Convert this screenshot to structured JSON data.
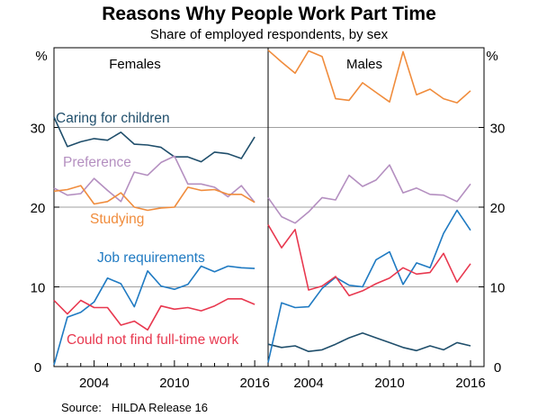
{
  "chart_data": {
    "type": "line",
    "title": "Reasons Why People Work Part Time",
    "subtitle": "Share of employed respondents, by sex",
    "ylabel_left": "%",
    "ylabel_right": "%",
    "ylim": [
      0,
      40
    ],
    "yticks": [
      0,
      10,
      20,
      30
    ],
    "xlim": [
      2001,
      2017
    ],
    "xticks": [
      2004,
      2010,
      2016
    ],
    "grid": true,
    "source_label": "Source:",
    "source_text": "HILDA Release 16",
    "x": [
      2001,
      2002,
      2003,
      2004,
      2005,
      2006,
      2007,
      2008,
      2009,
      2010,
      2011,
      2012,
      2013,
      2014,
      2015,
      2016
    ],
    "colors": {
      "caring": "#1f4e6b",
      "preference": "#b48fc0",
      "studying": "#f08c3c",
      "job": "#1f7ac2",
      "couldnot": "#e8384f"
    },
    "panels": [
      {
        "name": "Females",
        "series": [
          {
            "key": "caring",
            "name": "Caring for children",
            "values": [
              31.3,
              27.6,
              28.2,
              28.6,
              28.4,
              29.4,
              27.9,
              27.8,
              27.5,
              26.3,
              26.3,
              25.7,
              26.9,
              26.7,
              26.1,
              28.8
            ]
          },
          {
            "key": "preference",
            "name": "Preference",
            "values": [
              22.4,
              21.5,
              21.7,
              23.6,
              22.1,
              20.7,
              24.4,
              24.0,
              25.6,
              26.4,
              22.9,
              22.9,
              22.5,
              21.3,
              22.7,
              20.6
            ]
          },
          {
            "key": "studying",
            "name": "Studying",
            "values": [
              22.0,
              22.2,
              22.7,
              20.4,
              20.7,
              21.8,
              20.0,
              19.6,
              19.9,
              20.0,
              22.5,
              22.1,
              22.2,
              21.6,
              21.6,
              20.6
            ]
          },
          {
            "key": "job",
            "name": "Job requirements",
            "values": [
              0.2,
              6.2,
              6.8,
              8.1,
              11.1,
              10.4,
              7.5,
              12.0,
              10.1,
              9.7,
              10.3,
              12.6,
              11.9,
              12.6,
              12.4,
              12.3
            ]
          },
          {
            "key": "couldnot",
            "name": "Could not find full-time work",
            "values": [
              8.3,
              6.6,
              8.3,
              7.4,
              7.4,
              5.2,
              5.7,
              4.6,
              7.6,
              7.2,
              7.4,
              7.0,
              7.6,
              8.5,
              8.5,
              7.8
            ]
          }
        ]
      },
      {
        "name": "Males",
        "series": [
          {
            "key": "caring",
            "name": "",
            "values": [
              2.8,
              2.4,
              2.6,
              1.9,
              2.1,
              2.8,
              3.6,
              4.2,
              3.6,
              3.0,
              2.4,
              2.0,
              2.6,
              2.1,
              3.0,
              2.6
            ]
          },
          {
            "key": "preference",
            "name": "",
            "values": [
              21.2,
              18.8,
              18.0,
              19.4,
              21.2,
              20.9,
              24.0,
              22.6,
              23.4,
              25.3,
              21.8,
              22.4,
              21.6,
              21.5,
              20.7,
              22.9
            ]
          },
          {
            "key": "studying",
            "name": "",
            "values": [
              39.7,
              38.2,
              36.8,
              39.6,
              38.9,
              33.6,
              33.4,
              35.6,
              34.4,
              33.2,
              39.5,
              34.1,
              34.8,
              33.6,
              33.1,
              34.6
            ]
          },
          {
            "key": "job",
            "name": "",
            "values": [
              0.5,
              8.0,
              7.4,
              7.5,
              9.8,
              11.2,
              10.2,
              10.0,
              13.4,
              14.4,
              10.3,
              13.0,
              12.4,
              16.7,
              19.6,
              17.1
            ]
          },
          {
            "key": "couldnot",
            "name": "",
            "values": [
              17.8,
              14.9,
              17.2,
              9.6,
              10.1,
              11.3,
              8.9,
              9.5,
              10.4,
              11.1,
              12.4,
              11.6,
              11.8,
              14.2,
              10.6,
              12.9
            ]
          }
        ]
      }
    ]
  }
}
